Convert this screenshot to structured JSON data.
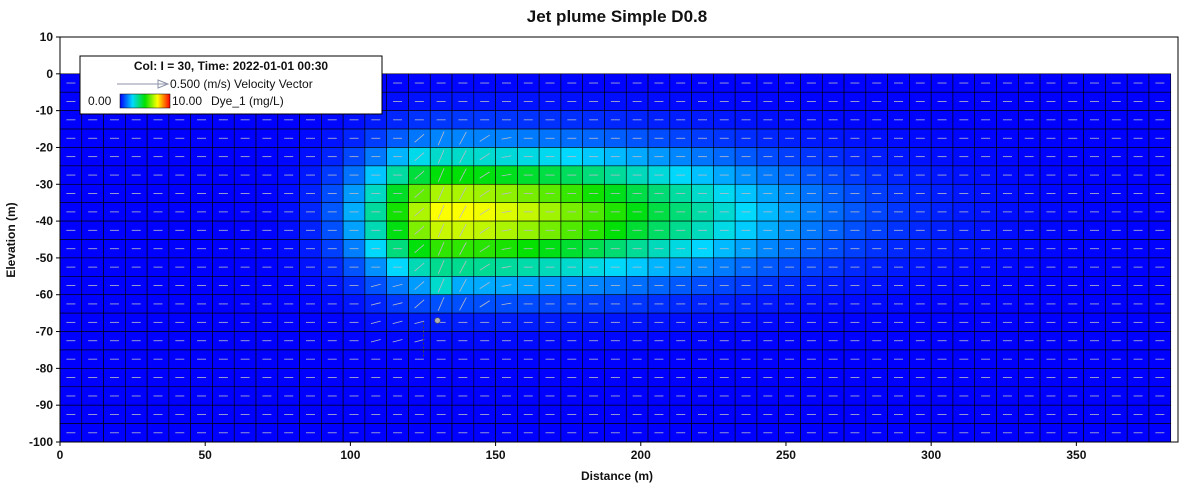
{
  "chart_data": {
    "type": "heatmap",
    "title": "Jet plume Simple D0.8",
    "xlabel": "Distance (m)",
    "ylabel": "Elevation (m)",
    "xlim": [
      0,
      385
    ],
    "ylim": [
      -100,
      10
    ],
    "x_ticks": [
      "0",
      "50",
      "100",
      "150",
      "200",
      "250",
      "300",
      "350"
    ],
    "y_ticks": [
      "10",
      "0",
      "-10",
      "-20",
      "-30",
      "-40",
      "-50",
      "-60",
      "-70",
      "-80",
      "-90",
      "-100"
    ],
    "grid": {
      "cell_width_m": 7.5,
      "cell_height_m": 5,
      "columns": 51,
      "rows": 20,
      "top_elevation": 0,
      "bottom_elevation": -100
    },
    "colormap": [
      "#0000ff",
      "#00d8ff",
      "#00e000",
      "#ffff00",
      "#ff0000"
    ],
    "scale_min": "0.00",
    "scale_max": "10.00",
    "variable_label": "Dye_1 (mg/L)",
    "plume": {
      "source_x": 130,
      "source_y": -67,
      "center_x": 133,
      "center_y": -38,
      "peak_concentration": 7.5,
      "upstream_extent_x": 92,
      "downstream_extent_x": 280,
      "top_y": -15,
      "bottom_y": -62
    },
    "vector_reference": "0.500 (m/s) Velocity Vector",
    "legend_header": "Col: I = 30, Time: 2022-01-01 00:30",
    "legend_position": "top-left",
    "colors": {
      "cell_border": "#000000",
      "vector": "#b8bcc8",
      "background": "#ffffff"
    }
  }
}
